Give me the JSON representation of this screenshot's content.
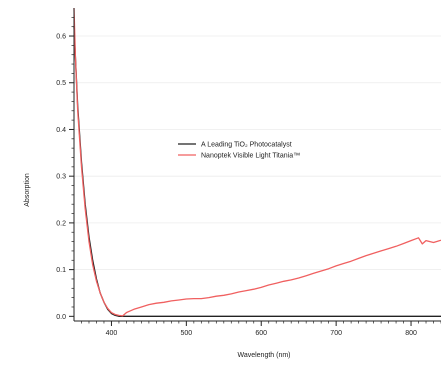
{
  "chart_data": {
    "type": "line",
    "title": "",
    "xlabel": "Wavelength (nm)",
    "ylabel": "Absorption",
    "xlim": [
      350,
      840
    ],
    "ylim": [
      -0.01,
      0.66
    ],
    "x_ticks": [
      400,
      500,
      600,
      700,
      800
    ],
    "y_ticks": [
      0.0,
      0.1,
      0.2,
      0.3,
      0.4,
      0.5,
      0.6
    ],
    "y_tick_labels": [
      "0.0",
      "0.1",
      "0.2",
      "0.3",
      "0.4",
      "0.5",
      "0.6"
    ],
    "grid": true,
    "legend_position": "center-right",
    "series": [
      {
        "name": "A Leading TiO₂ Photocatalyst",
        "color": "#222222",
        "x": [
          350,
          355,
          360,
          365,
          370,
          375,
          380,
          385,
          390,
          395,
          400,
          405,
          410,
          420,
          450,
          500,
          550,
          600,
          650,
          700,
          750,
          800,
          840
        ],
        "y": [
          0.62,
          0.45,
          0.33,
          0.24,
          0.17,
          0.12,
          0.08,
          0.05,
          0.03,
          0.015,
          0.006,
          0.002,
          0.0,
          0.0,
          0.0,
          0.0,
          0.0,
          0.0,
          0.0,
          0.0,
          0.0,
          0.0,
          0.0
        ]
      },
      {
        "name": "Nanoptek Visible Light Titania™",
        "color": "#f06060",
        "x": [
          350,
          352,
          355,
          360,
          365,
          370,
          375,
          380,
          385,
          390,
          395,
          400,
          405,
          410,
          415,
          420,
          430,
          440,
          450,
          460,
          470,
          480,
          490,
          500,
          510,
          520,
          530,
          540,
          550,
          560,
          570,
          580,
          590,
          600,
          610,
          620,
          630,
          640,
          650,
          660,
          670,
          680,
          690,
          700,
          710,
          720,
          730,
          740,
          750,
          760,
          770,
          780,
          790,
          800,
          810,
          815,
          820,
          830,
          840
        ],
        "y": [
          0.66,
          0.55,
          0.44,
          0.32,
          0.23,
          0.16,
          0.11,
          0.075,
          0.05,
          0.03,
          0.017,
          0.008,
          0.004,
          0.002,
          0.001,
          0.008,
          0.015,
          0.02,
          0.025,
          0.028,
          0.03,
          0.033,
          0.035,
          0.037,
          0.038,
          0.038,
          0.04,
          0.043,
          0.045,
          0.048,
          0.052,
          0.055,
          0.058,
          0.062,
          0.067,
          0.071,
          0.075,
          0.078,
          0.082,
          0.087,
          0.092,
          0.097,
          0.102,
          0.108,
          0.113,
          0.118,
          0.124,
          0.13,
          0.135,
          0.14,
          0.145,
          0.15,
          0.156,
          0.162,
          0.168,
          0.155,
          0.162,
          0.158,
          0.163
        ]
      }
    ]
  }
}
